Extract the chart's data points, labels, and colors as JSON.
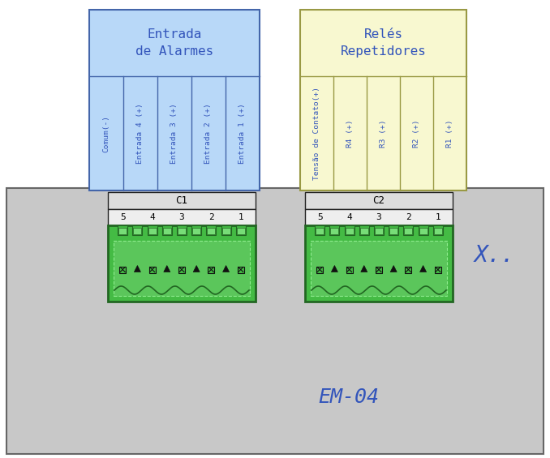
{
  "fig_width": 6.78,
  "fig_height": 5.65,
  "dpi": 100,
  "bg_color": "#c8c8c8",
  "white_bg": "#ffffff",
  "blue_box_color": "#b8d8f8",
  "yellow_box_color": "#f8f8d0",
  "blue_border": "#4466aa",
  "yellow_border": "#999944",
  "green_connector": "#44bb44",
  "dark_green": "#226622",
  "mid_green": "#66cc66",
  "text_blue": "#3355bb",
  "text_black": "#222222",
  "title1": "Entrada\nde Alarmes",
  "title2": "Relés\nRepetidores",
  "c1_label": "C1",
  "c2_label": "C2",
  "pins": [
    "5",
    "4",
    "3",
    "2",
    "1"
  ],
  "em_label": "EM-04",
  "x_label": "X..",
  "entrada_cols": [
    "Comum(-)",
    "Entrada 4 (+)",
    "Entrada 3 (+)",
    "Entrada 2 (+)",
    "Entrada 1 (+)"
  ],
  "rele_cols": [
    "Tensão de Contato(+)",
    "R4 (+)",
    "R3 (+)",
    "R2 (+)",
    "R1 (+)"
  ]
}
